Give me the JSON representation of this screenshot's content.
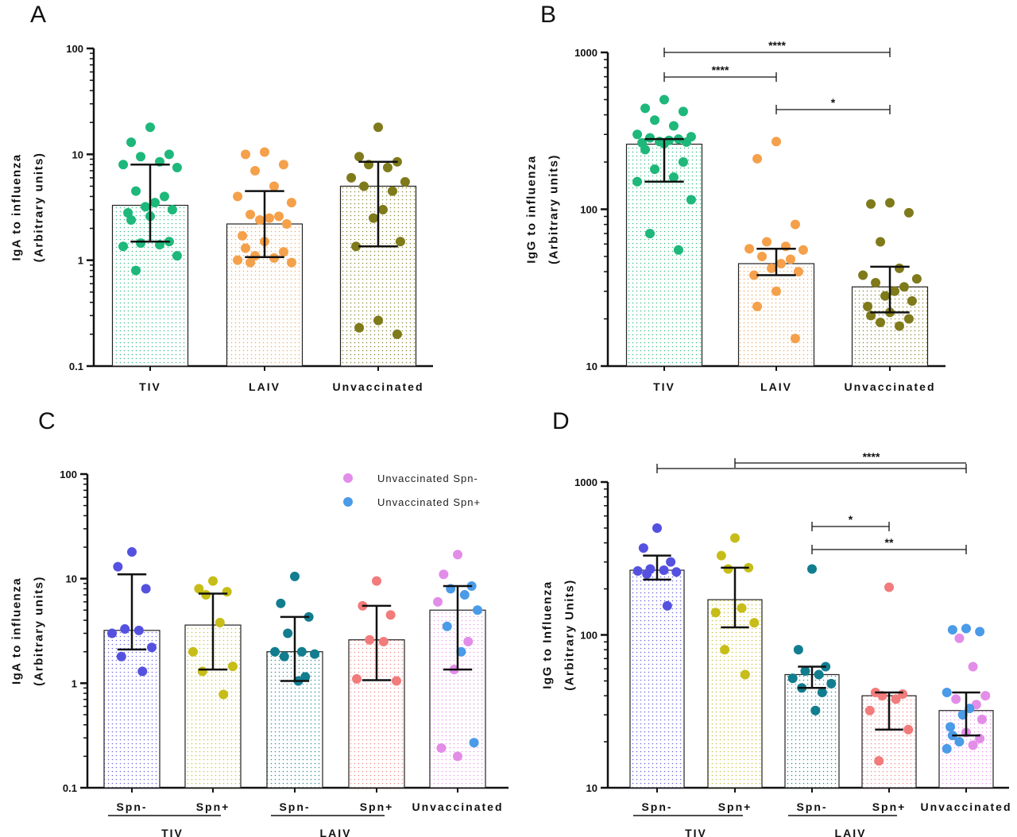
{
  "chart_data": [
    {
      "panel": "A",
      "type": "bar",
      "yscale": "log",
      "ylim": [
        0.1,
        100
      ],
      "yticks": [
        "0.1",
        "1",
        "10",
        "100"
      ],
      "ylabel": [
        "IgA to influenza",
        "(Arbitrary units)"
      ],
      "categories": [
        "TIV",
        "LAIV",
        "Unvaccinated"
      ],
      "bars": [
        {
          "median": 3.3,
          "err_low": 1.5,
          "err_high": 8.0,
          "color": "#1db87a",
          "points": [
            18,
            13,
            10,
            9.5,
            8.5,
            8,
            7.5,
            4.5,
            4,
            3.5,
            3.2,
            3,
            2.8,
            2.6,
            2.4,
            1.5,
            1.45,
            1.4,
            1.35,
            1.1,
            0.8
          ]
        },
        {
          "median": 2.2,
          "err_low": 1.07,
          "err_high": 4.5,
          "color": "#f5a04a",
          "points": [
            10.5,
            10,
            8,
            7,
            5,
            4,
            3.5,
            2.7,
            2.6,
            2.5,
            2.4,
            2.2,
            1.7,
            1.5,
            1.3,
            1.2,
            1.1,
            1.05,
            1.0,
            0.95,
            0.95
          ]
        },
        {
          "median": 5.0,
          "err_low": 1.35,
          "err_high": 8.5,
          "color": "#7f7a1a",
          "points": [
            18,
            9.5,
            8.5,
            8,
            7.5,
            6,
            5.5,
            5,
            4.5,
            3,
            2.5,
            1.5,
            1.35,
            0.27,
            0.23,
            0.2
          ]
        }
      ],
      "significance": []
    },
    {
      "panel": "B",
      "type": "bar",
      "yscale": "log",
      "ylim": [
        10,
        1000
      ],
      "yticks": [
        "10",
        "100",
        "1000"
      ],
      "ylabel": [
        "IgG to influenza",
        "(Arbitrary units)"
      ],
      "categories": [
        "TIV",
        "LAIV",
        "Unvaccinated"
      ],
      "bars": [
        {
          "median": 260,
          "err_low": 150,
          "err_high": 280,
          "color": "#1db87a",
          "points": [
            500,
            440,
            420,
            370,
            340,
            300,
            290,
            285,
            280,
            275,
            270,
            268,
            265,
            262,
            240,
            200,
            180,
            160,
            150,
            115,
            70,
            55
          ]
        },
        {
          "median": 45,
          "err_low": 38,
          "err_high": 56,
          "color": "#f5a04a",
          "points": [
            270,
            210,
            80,
            62,
            58,
            56,
            55,
            50,
            48,
            45,
            42,
            40,
            38,
            30,
            24,
            15
          ]
        },
        {
          "median": 32,
          "err_low": 22,
          "err_high": 43,
          "color": "#7f7a1a",
          "points": [
            110,
            108,
            95,
            62,
            42,
            38,
            36,
            34,
            32,
            30,
            28,
            26,
            24,
            22,
            21,
            20,
            19,
            18
          ]
        }
      ],
      "significance": [
        {
          "from": 0,
          "to": 2,
          "label": "****",
          "level": 1
        },
        {
          "from": 0,
          "to": 1,
          "label": "****",
          "level": 2
        },
        {
          "from": 1,
          "to": 2,
          "label": "*",
          "level": 3
        }
      ]
    },
    {
      "panel": "C",
      "type": "bar",
      "yscale": "log",
      "ylim": [
        0.1,
        100
      ],
      "yticks": [
        "0.1",
        "1",
        "10",
        "100"
      ],
      "ylabel": [
        "IgA to influenza",
        "(Arbitrary units)"
      ],
      "categories": [
        "Spn-",
        "Spn+",
        "Spn-",
        "Spn+",
        "Unvaccinated"
      ],
      "groups": [
        {
          "label": "TIV",
          "from": 0,
          "to": 1
        },
        {
          "label": "LAIV",
          "from": 2,
          "to": 3
        }
      ],
      "legend": [
        {
          "label": "Unvaccinated Spn-",
          "color": "#e28de8"
        },
        {
          "label": "Unvaccinated Spn+",
          "color": "#4a9be8"
        }
      ],
      "bars": [
        {
          "median": 3.2,
          "err_low": 2.1,
          "err_high": 11,
          "color": "#5551e0",
          "points": [
            18,
            13,
            8,
            3.3,
            3.2,
            3.0,
            2.2,
            1.8,
            1.3
          ]
        },
        {
          "median": 3.6,
          "err_low": 1.35,
          "err_high": 7.2,
          "color": "#c6bd18",
          "points": [
            9.5,
            8,
            7.5,
            7.0,
            3.8,
            2.0,
            1.45,
            1.3,
            0.78
          ]
        },
        {
          "median": 2.0,
          "err_low": 1.05,
          "err_high": 4.3,
          "color": "#117d8f",
          "points": [
            10.5,
            5.8,
            4.3,
            3.0,
            2.0,
            2.0,
            1.9,
            1.8,
            1.15,
            1.05
          ]
        },
        {
          "median": 2.6,
          "err_low": 1.07,
          "err_high": 5.5,
          "color": "#f27b7b",
          "points": [
            9.5,
            5.5,
            4.5,
            2.6,
            2.5,
            1.1,
            1.05
          ]
        },
        {
          "median": 5.0,
          "err_low": 1.35,
          "err_high": 8.5,
          "color": "#e28de8",
          "points": [
            17,
            11,
            8.5,
            8,
            7,
            6,
            5,
            3.5,
            2.5,
            2,
            1.35,
            0.27,
            0.24,
            0.2
          ],
          "point_colors": [
            "#e28de8",
            "#e28de8",
            "#4a9be8",
            "#4a9be8",
            "#4a9be8",
            "#e28de8",
            "#4a9be8",
            "#4a9be8",
            "#e28de8",
            "#4a9be8",
            "#e28de8",
            "#4a9be8",
            "#e28de8",
            "#e28de8"
          ]
        }
      ],
      "significance": []
    },
    {
      "panel": "D",
      "type": "bar",
      "yscale": "log",
      "ylim": [
        10,
        1000
      ],
      "yticks": [
        "10",
        "100",
        "1000"
      ],
      "ylabel": [
        "IgG to Influenza",
        "(Arbitrary Units)"
      ],
      "categories": [
        "Spn-",
        "Spn+",
        "Spn-",
        "Spn+",
        "Unvaccinated"
      ],
      "groups": [
        {
          "label": "TIV",
          "from": 0,
          "to": 1
        },
        {
          "label": "LAIV",
          "from": 2,
          "to": 3
        }
      ],
      "bars": [
        {
          "median": 265,
          "err_low": 230,
          "err_high": 330,
          "color": "#5551e0",
          "points": [
            500,
            370,
            300,
            270,
            265,
            262,
            258,
            250,
            155
          ]
        },
        {
          "median": 170,
          "err_low": 112,
          "err_high": 275,
          "color": "#c6bd18",
          "points": [
            430,
            330,
            275,
            270,
            150,
            140,
            120,
            80,
            55
          ]
        },
        {
          "median": 55,
          "err_low": 45,
          "err_high": 62,
          "color": "#117d8f",
          "points": [
            270,
            80,
            62,
            58,
            55,
            52,
            48,
            45,
            42,
            32
          ]
        },
        {
          "median": 40,
          "err_low": 24,
          "err_high": 42,
          "color": "#f27b7b",
          "points": [
            205,
            42,
            41,
            40,
            38,
            32,
            24,
            15
          ]
        },
        {
          "median": 32,
          "err_low": 22,
          "err_high": 42,
          "color": "#e28de8",
          "points": [
            110,
            108,
            105,
            95,
            62,
            42,
            40,
            38,
            35,
            33,
            30,
            28,
            25,
            23,
            22,
            21,
            20,
            19,
            18
          ],
          "point_colors": [
            "#4a9be8",
            "#4a9be8",
            "#4a9be8",
            "#e28de8",
            "#e28de8",
            "#4a9be8",
            "#e28de8",
            "#e28de8",
            "#e28de8",
            "#4a9be8",
            "#4a9be8",
            "#e28de8",
            "#4a9be8",
            "#e28de8",
            "#4a9be8",
            "#e28de8",
            "#4a9be8",
            "#e28de8",
            "#4a9be8"
          ]
        }
      ],
      "significance": [
        {
          "from": 0,
          "to": 4,
          "label": "****",
          "level": 1,
          "double_from": 1
        },
        {
          "from": 2,
          "to": 3,
          "label": "*",
          "level": 2
        },
        {
          "from": 2,
          "to": 4,
          "label": "**",
          "level": 3
        }
      ]
    }
  ]
}
